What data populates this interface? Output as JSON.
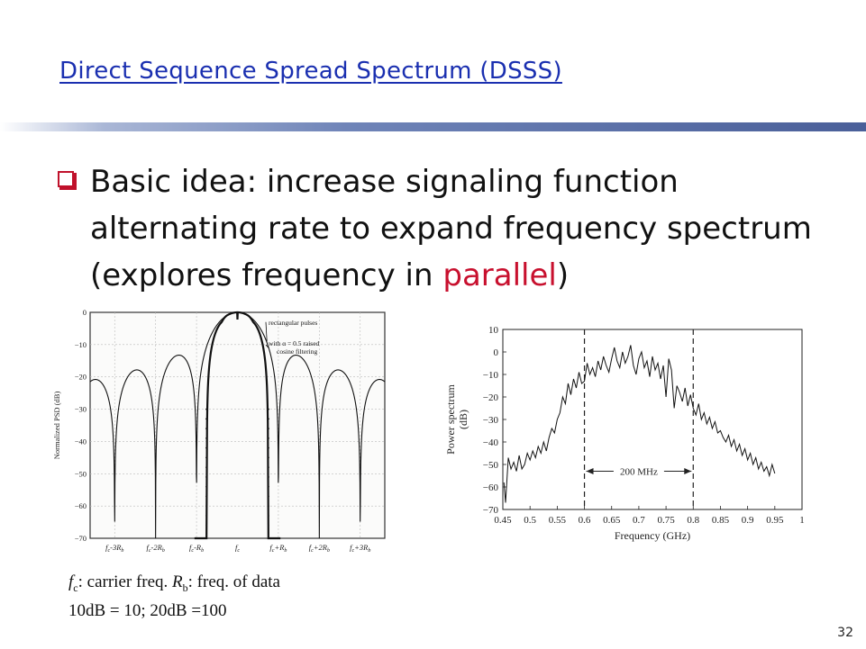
{
  "slide": {
    "title": "Direct Sequence Spread Spectrum (DSSS)",
    "bullet_text_main": "Basic idea: increase signaling function alternating rate to expand frequency spectrum (explores frequency in ",
    "bullet_text_accent": "parallel",
    "bullet_text_end": ")",
    "caption_line1_fc": "f",
    "caption_line1_fc_sub": "c",
    "caption_line1_mid": ": carrier freq. ",
    "caption_line1_rb": "R",
    "caption_line1_rb_sub": "b",
    "caption_line1_end": ": freq. of data",
    "caption_line2": "10dB = 10; 20dB =100",
    "page_number": "32",
    "accent_color": "#c8102e",
    "title_color": "#1a2fb0"
  },
  "chart_data": [
    {
      "type": "line",
      "title": "",
      "ylabel": "Normalized PSD (dB)",
      "xlabel": "",
      "ylim": [
        -70,
        0
      ],
      "yticks": [
        "0",
        "−10",
        "−20",
        "−30",
        "−40",
        "−50",
        "−60",
        "−70"
      ],
      "xticks": [
        "fᴄ-3Rᵦ",
        "fᴄ-2Rᵦ",
        "fᴄ-Rᵦ",
        "fᴄ",
        "fᴄ+Rᵦ",
        "fᴄ+2Rᵦ",
        "fᴄ+3Rᵦ"
      ],
      "xtick_parts": [
        {
          "a": "f",
          "as": "c",
          "b": "-3R",
          "bs": "b"
        },
        {
          "a": "f",
          "as": "c",
          "b": "-2R",
          "bs": "b"
        },
        {
          "a": "f",
          "as": "c",
          "b": "-R",
          "bs": "b"
        },
        {
          "a": "f",
          "as": "c",
          "b": "",
          "bs": ""
        },
        {
          "a": "f",
          "as": "c",
          "b": "+R",
          "bs": "b"
        },
        {
          "a": "f",
          "as": "c",
          "b": "+2R",
          "bs": "b"
        },
        {
          "a": "f",
          "as": "c",
          "b": "+3R",
          "bs": "b"
        }
      ],
      "x_range": [
        -3.6,
        3.6
      ],
      "grid": true,
      "legend": [
        "rectangular pulses",
        "with α = 0.5 raised cosine filtering"
      ],
      "series": [
        {
          "name": "rectangular pulses",
          "shape": "sinc-squared",
          "sidelobe_peaks_db": [
            -13.3,
            -17.9,
            -20.8
          ]
        },
        {
          "name": "with α = 0.5 raised cosine filtering",
          "shape": "raised-cosine",
          "alpha": 0.5
        }
      ]
    },
    {
      "type": "line",
      "title": "",
      "xlabel": "Frequency (GHz)",
      "ylabel": "Power spectrum (dB)",
      "xlim": [
        0.45,
        1.0
      ],
      "ylim": [
        -70,
        10
      ],
      "xticks": [
        "0.45",
        "0.5",
        "0.55",
        "0.6",
        "0.65",
        "0.7",
        "0.75",
        "0.8",
        "0.85",
        "0.9",
        "0.95",
        "1"
      ],
      "yticks": [
        "10",
        "0",
        "−10",
        "−20",
        "−30",
        "−40",
        "−50",
        "−60",
        "−70"
      ],
      "annotation": "200 MHz",
      "markers_x": [
        0.6,
        0.8
      ],
      "x": [
        0.452,
        0.455,
        0.458,
        0.46,
        0.465,
        0.47,
        0.475,
        0.48,
        0.485,
        0.49,
        0.495,
        0.5,
        0.505,
        0.51,
        0.515,
        0.52,
        0.525,
        0.53,
        0.535,
        0.54,
        0.545,
        0.55,
        0.555,
        0.56,
        0.565,
        0.57,
        0.575,
        0.58,
        0.585,
        0.59,
        0.595,
        0.6,
        0.605,
        0.61,
        0.615,
        0.62,
        0.625,
        0.63,
        0.635,
        0.64,
        0.645,
        0.65,
        0.655,
        0.66,
        0.665,
        0.67,
        0.675,
        0.68,
        0.685,
        0.69,
        0.695,
        0.7,
        0.705,
        0.71,
        0.715,
        0.72,
        0.725,
        0.73,
        0.735,
        0.74,
        0.745,
        0.75,
        0.755,
        0.76,
        0.765,
        0.77,
        0.775,
        0.78,
        0.785,
        0.79,
        0.795,
        0.8,
        0.805,
        0.81,
        0.815,
        0.82,
        0.825,
        0.83,
        0.835,
        0.84,
        0.845,
        0.85,
        0.855,
        0.86,
        0.865,
        0.87,
        0.875,
        0.88,
        0.885,
        0.89,
        0.895,
        0.9,
        0.905,
        0.91,
        0.915,
        0.92,
        0.925,
        0.93,
        0.935,
        0.94,
        0.945,
        0.95
      ],
      "values": [
        -58,
        -67,
        -55,
        -47,
        -52,
        -49,
        -53,
        -46,
        -52,
        -50,
        -45,
        -48,
        -44,
        -47,
        -42,
        -45,
        -40,
        -44,
        -38,
        -34,
        -36,
        -30,
        -27,
        -20,
        -23,
        -14,
        -19,
        -12,
        -16,
        -9,
        -14,
        -13,
        -5,
        -10,
        -7,
        -11,
        -4,
        -8,
        -2,
        -6,
        -9,
        -3,
        2,
        -4,
        -7,
        0,
        -5,
        -2,
        3,
        -6,
        -10,
        -3,
        0,
        -7,
        -4,
        -11,
        -2,
        -8,
        -5,
        -12,
        -6,
        -20,
        -3,
        -8,
        -25,
        -15,
        -18,
        -22,
        -16,
        -24,
        -19,
        -25,
        -28,
        -23,
        -30,
        -27,
        -32,
        -29,
        -34,
        -31,
        -36,
        -35,
        -38,
        -40,
        -37,
        -42,
        -39,
        -44,
        -41,
        -46,
        -43,
        -48,
        -45,
        -50,
        -47,
        -52,
        -49,
        -53,
        -51,
        -55,
        -50,
        -54
      ]
    }
  ]
}
